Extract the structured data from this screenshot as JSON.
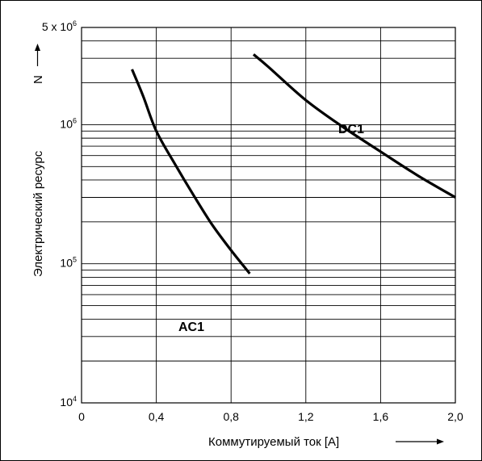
{
  "chart_data": {
    "type": "line",
    "xlabel": "Коммутируемый ток [A]",
    "ylabel": "Электрический ресурс",
    "y_symbol": "N",
    "x_ticks": [
      "0",
      "0,4",
      "0,8",
      "1,2",
      "1,6",
      "2,0"
    ],
    "y_tick_labels": [
      {
        "value": 10000,
        "base": "10",
        "exp": "4"
      },
      {
        "value": 100000,
        "base": "10",
        "exp": "5"
      },
      {
        "value": 1000000,
        "base": "10",
        "exp": "6"
      },
      {
        "value": 5000000,
        "base": "5 x 10",
        "exp": "6"
      }
    ],
    "xlim": [
      0,
      2.0
    ],
    "ylim": [
      10000,
      5000000
    ],
    "yscale": "log",
    "grid": true,
    "series": [
      {
        "name": "AC1",
        "x": [
          0.27,
          0.33,
          0.4,
          0.5,
          0.6,
          0.7,
          0.8,
          0.9
        ],
        "y": [
          2500000,
          1600000,
          900000,
          520000,
          310000,
          190000,
          125000,
          85000
        ]
      },
      {
        "name": "DC1",
        "x": [
          0.92,
          1.0,
          1.2,
          1.4,
          1.6,
          1.8,
          2.0
        ],
        "y": [
          3200000,
          2600000,
          1500000,
          960000,
          640000,
          430000,
          300000
        ]
      }
    ]
  }
}
